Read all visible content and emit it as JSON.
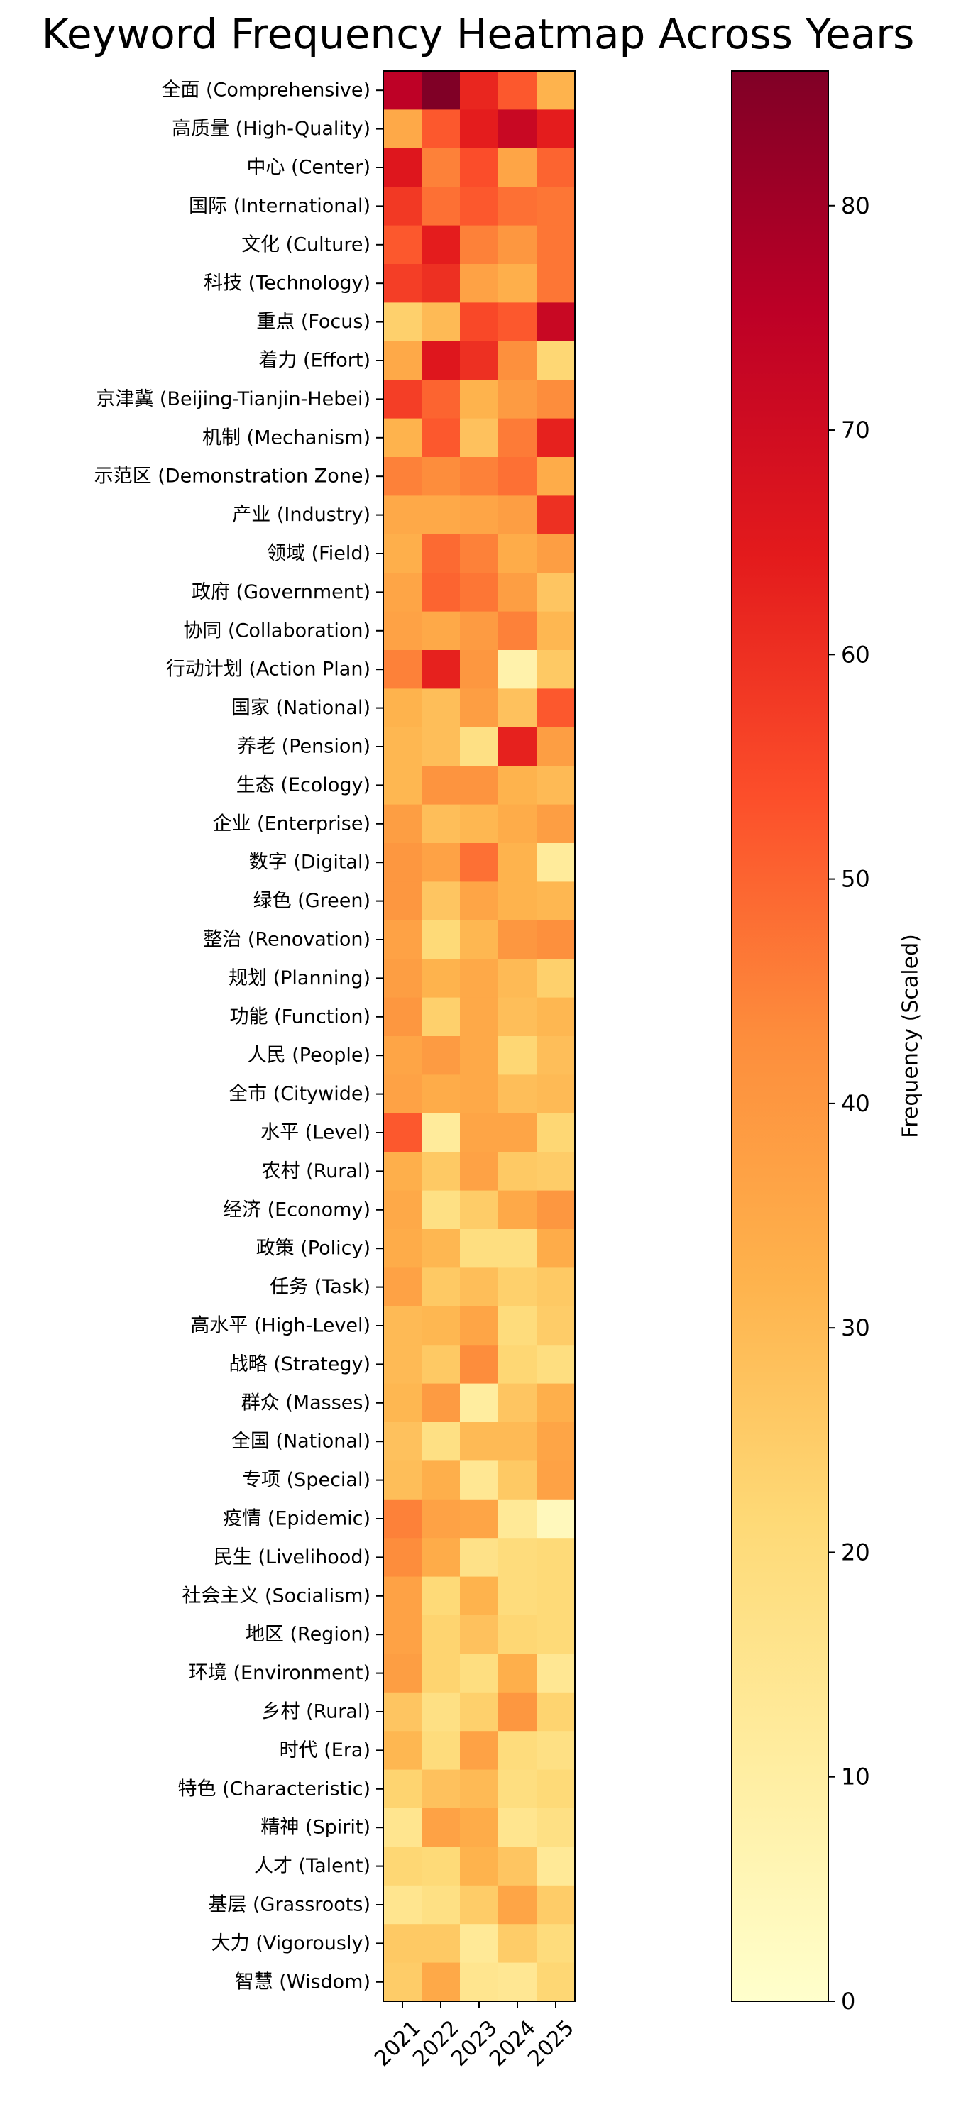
{
  "chart_data": [
    {
      "type": "heatmap",
      "title": "Keyword Frequency Heatmap Across Years",
      "xlabel": "",
      "ylabel": "",
      "columns": [
        "2021",
        "2022",
        "2023",
        "2024",
        "2025"
      ],
      "rows": [
        "全面 (Comprehensive)",
        "高质量 (High-Quality)",
        "中心 (Center)",
        "国际 (International)",
        "文化 (Culture)",
        "科技 (Technology)",
        "重点 (Focus)",
        "着力 (Effort)",
        "京津冀 (Beijing-Tianjin-Hebei)",
        "机制 (Mechanism)",
        "示范区 (Demonstration Zone)",
        "产业 (Industry)",
        "领域 (Field)",
        "政府 (Government)",
        "协同 (Collaboration)",
        "行动计划 (Action Plan)",
        "国家 (National)",
        "养老 (Pension)",
        "生态 (Ecology)",
        "企业 (Enterprise)",
        "数字 (Digital)",
        "绿色 (Green)",
        "整治 (Renovation)",
        "规划 (Planning)",
        "功能 (Function)",
        "人民 (People)",
        "全市 (Citywide)",
        "水平 (Level)",
        "农村 (Rural)",
        "经济 (Economy)",
        "政策 (Policy)",
        "任务 (Task)",
        "高水平 (High-Level)",
        "战略 (Strategy)",
        "群众 (Masses)",
        "全国 (National)",
        "专项 (Special)",
        "疫情 (Epidemic)",
        "民生 (Livelihood)",
        "社会主义 (Socialism)",
        "地区 (Region)",
        "环境 (Environment)",
        "乡村 (Rural)",
        "时代 (Era)",
        "特色 (Characteristic)",
        "精神 (Spirit)",
        "人才 (Talent)",
        "基层 (Grassroots)",
        "大力 (Vigorously)",
        "智慧 (Wisdom)"
      ],
      "values": [
        [
          75,
          86,
          62,
          52,
          32
        ],
        [
          35,
          52,
          64,
          72,
          64
        ],
        [
          66,
          45,
          54,
          36,
          50
        ],
        [
          58,
          48,
          52,
          48,
          47
        ],
        [
          52,
          64,
          45,
          40,
          47
        ],
        [
          57,
          60,
          37,
          33,
          47
        ],
        [
          24,
          30,
          55,
          52,
          72
        ],
        [
          35,
          66,
          60,
          42,
          22
        ],
        [
          57,
          50,
          32,
          39,
          43
        ],
        [
          32,
          52,
          28,
          46,
          63
        ],
        [
          45,
          43,
          45,
          48,
          34
        ],
        [
          35,
          35,
          36,
          38,
          60
        ],
        [
          33,
          49,
          45,
          34,
          38
        ],
        [
          36,
          50,
          47,
          38,
          27
        ],
        [
          37,
          35,
          39,
          45,
          31
        ],
        [
          45,
          63,
          40,
          8,
          26
        ],
        [
          32,
          29,
          38,
          28,
          52
        ],
        [
          31,
          29,
          18,
          63,
          38
        ],
        [
          31,
          41,
          41,
          32,
          30
        ],
        [
          38,
          29,
          31,
          34,
          38
        ],
        [
          40,
          37,
          48,
          32,
          12
        ],
        [
          40,
          27,
          36,
          32,
          31
        ],
        [
          37,
          21,
          31,
          40,
          42
        ],
        [
          38,
          32,
          35,
          30,
          24
        ],
        [
          40,
          24,
          35,
          29,
          31
        ],
        [
          36,
          39,
          35,
          22,
          29
        ],
        [
          37,
          34,
          35,
          29,
          30
        ],
        [
          52,
          12,
          36,
          36,
          22
        ],
        [
          33,
          26,
          37,
          26,
          25
        ],
        [
          35,
          18,
          25,
          35,
          40
        ],
        [
          34,
          31,
          19,
          19,
          34
        ],
        [
          37,
          26,
          29,
          24,
          26
        ],
        [
          30,
          31,
          36,
          20,
          25
        ],
        [
          30,
          26,
          43,
          22,
          19
        ],
        [
          31,
          39,
          11,
          27,
          33
        ],
        [
          28,
          18,
          30,
          30,
          36
        ],
        [
          29,
          33,
          14,
          26,
          37
        ],
        [
          45,
          37,
          36,
          13,
          4
        ],
        [
          43,
          34,
          17,
          20,
          21
        ],
        [
          37,
          21,
          32,
          20,
          21
        ],
        [
          37,
          23,
          28,
          22,
          21
        ],
        [
          38,
          23,
          19,
          33,
          14
        ],
        [
          27,
          18,
          24,
          40,
          23
        ],
        [
          31,
          20,
          37,
          20,
          18
        ],
        [
          23,
          28,
          30,
          19,
          21
        ],
        [
          15,
          37,
          34,
          15,
          18
        ],
        [
          22,
          21,
          32,
          27,
          13
        ],
        [
          15,
          18,
          25,
          36,
          25
        ],
        [
          26,
          26,
          13,
          25,
          20
        ],
        [
          25,
          35,
          15,
          14,
          22
        ]
      ],
      "colorbar": {
        "label": "Frequency (Scaled)",
        "range": [
          0,
          86
        ],
        "ticks": [
          0,
          10,
          20,
          30,
          40,
          50,
          60,
          70,
          80
        ],
        "colormap": "YlOrRd",
        "stops": [
          "#ffffcc",
          "#ffeda0",
          "#fed976",
          "#feb24c",
          "#fd8d3c",
          "#fc4e2a",
          "#e31a1c",
          "#bd0026",
          "#800026"
        ]
      },
      "grid": false,
      "legend": "colorbar-right"
    }
  ]
}
